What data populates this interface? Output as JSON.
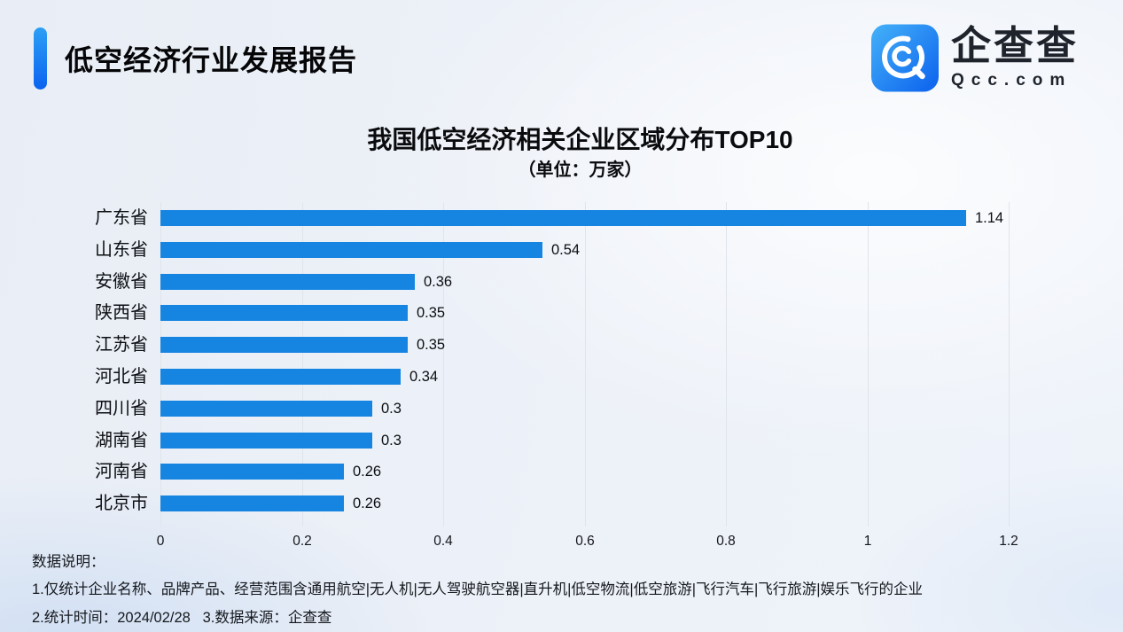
{
  "header": {
    "title": "低空经济行业发展报告"
  },
  "logo": {
    "name": "企查查",
    "domain": "Qcc.com"
  },
  "chart_data": {
    "type": "bar",
    "orientation": "horizontal",
    "title": "我国低空经济相关企业区域分布TOP10",
    "subtitle": "（单位：万家）",
    "categories": [
      "广东省",
      "山东省",
      "安徽省",
      "陕西省",
      "江苏省",
      "河北省",
      "四川省",
      "湖南省",
      "河南省",
      "北京市"
    ],
    "values": [
      1.14,
      0.54,
      0.36,
      0.35,
      0.35,
      0.34,
      0.3,
      0.3,
      0.26,
      0.26
    ],
    "value_labels": [
      "1.14",
      "0.54",
      "0.36",
      "0.35",
      "0.35",
      "0.34",
      "0.3",
      "0.3",
      "0.26",
      "0.26"
    ],
    "xlim": [
      0,
      1.2
    ],
    "x_ticks": [
      "0",
      "0.2",
      "0.4",
      "0.6",
      "0.8",
      "1",
      "1.2"
    ],
    "xlabel": "",
    "ylabel": "",
    "grid": true,
    "legend_position": "none",
    "bar_color": "#1685e2"
  },
  "footer": {
    "heading": "数据说明：",
    "note1": "1.仅统计企业名称、品牌产品、经营范围含通用航空|无人机|无人驾驶航空器|直升机|低空物流|低空旅游|飞行汽车|飞行旅游|娱乐飞行的企业",
    "note2": "2.统计时间：2024/02/28   3.数据来源：企查查"
  },
  "colors": {
    "accent_gradient_start": "#2d9ff5",
    "accent_gradient_end": "#0a63f0",
    "logo_gradient_start": "#45b2f8",
    "logo_gradient_end": "#0b61ee",
    "bar": "#1685e2",
    "gridline": "#e0e4eb",
    "background": "#edf1f8"
  }
}
